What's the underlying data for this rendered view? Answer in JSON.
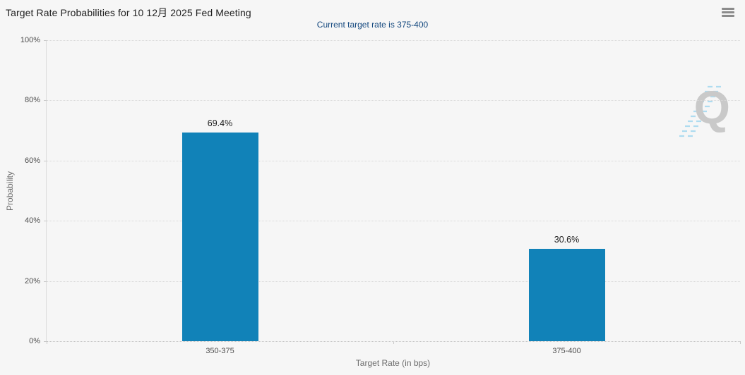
{
  "header": {
    "title": "Target Rate Probabilities for 10 12月 2025 Fed Meeting",
    "subtitle": "Current target rate is 375-400",
    "menu_icon": "hamburger-icon"
  },
  "chart_data": {
    "type": "bar",
    "title": "Target Rate Probabilities for 10 12月 2025 Fed Meeting",
    "subtitle": "Current target rate is 375-400",
    "categories": [
      "350-375",
      "375-400"
    ],
    "values": [
      69.4,
      30.6
    ],
    "value_labels": [
      "69.4%",
      "30.6%"
    ],
    "xlabel": "Target Rate (in bps)",
    "ylabel": "Probability",
    "ylim": [
      0,
      100
    ],
    "ytick_step": 20,
    "ytick_suffix": "%",
    "grid": "horizontal-dotted",
    "legend": "none",
    "bar_color": "#1182b8"
  },
  "watermark": {
    "letter": "Q"
  },
  "colors": {
    "background": "#f6f6f6",
    "title_text": "#212121",
    "subtitle_text": "#15497f",
    "bar": "#1182b8",
    "axis_line": "#dcdcdc",
    "grid_dot": "#d9d9d9",
    "tick_text": "#4d4d4d",
    "axis_title_text": "#6d6d6d",
    "watermark_gray": "#c9c9c9",
    "watermark_blue": "#aedcf0"
  }
}
